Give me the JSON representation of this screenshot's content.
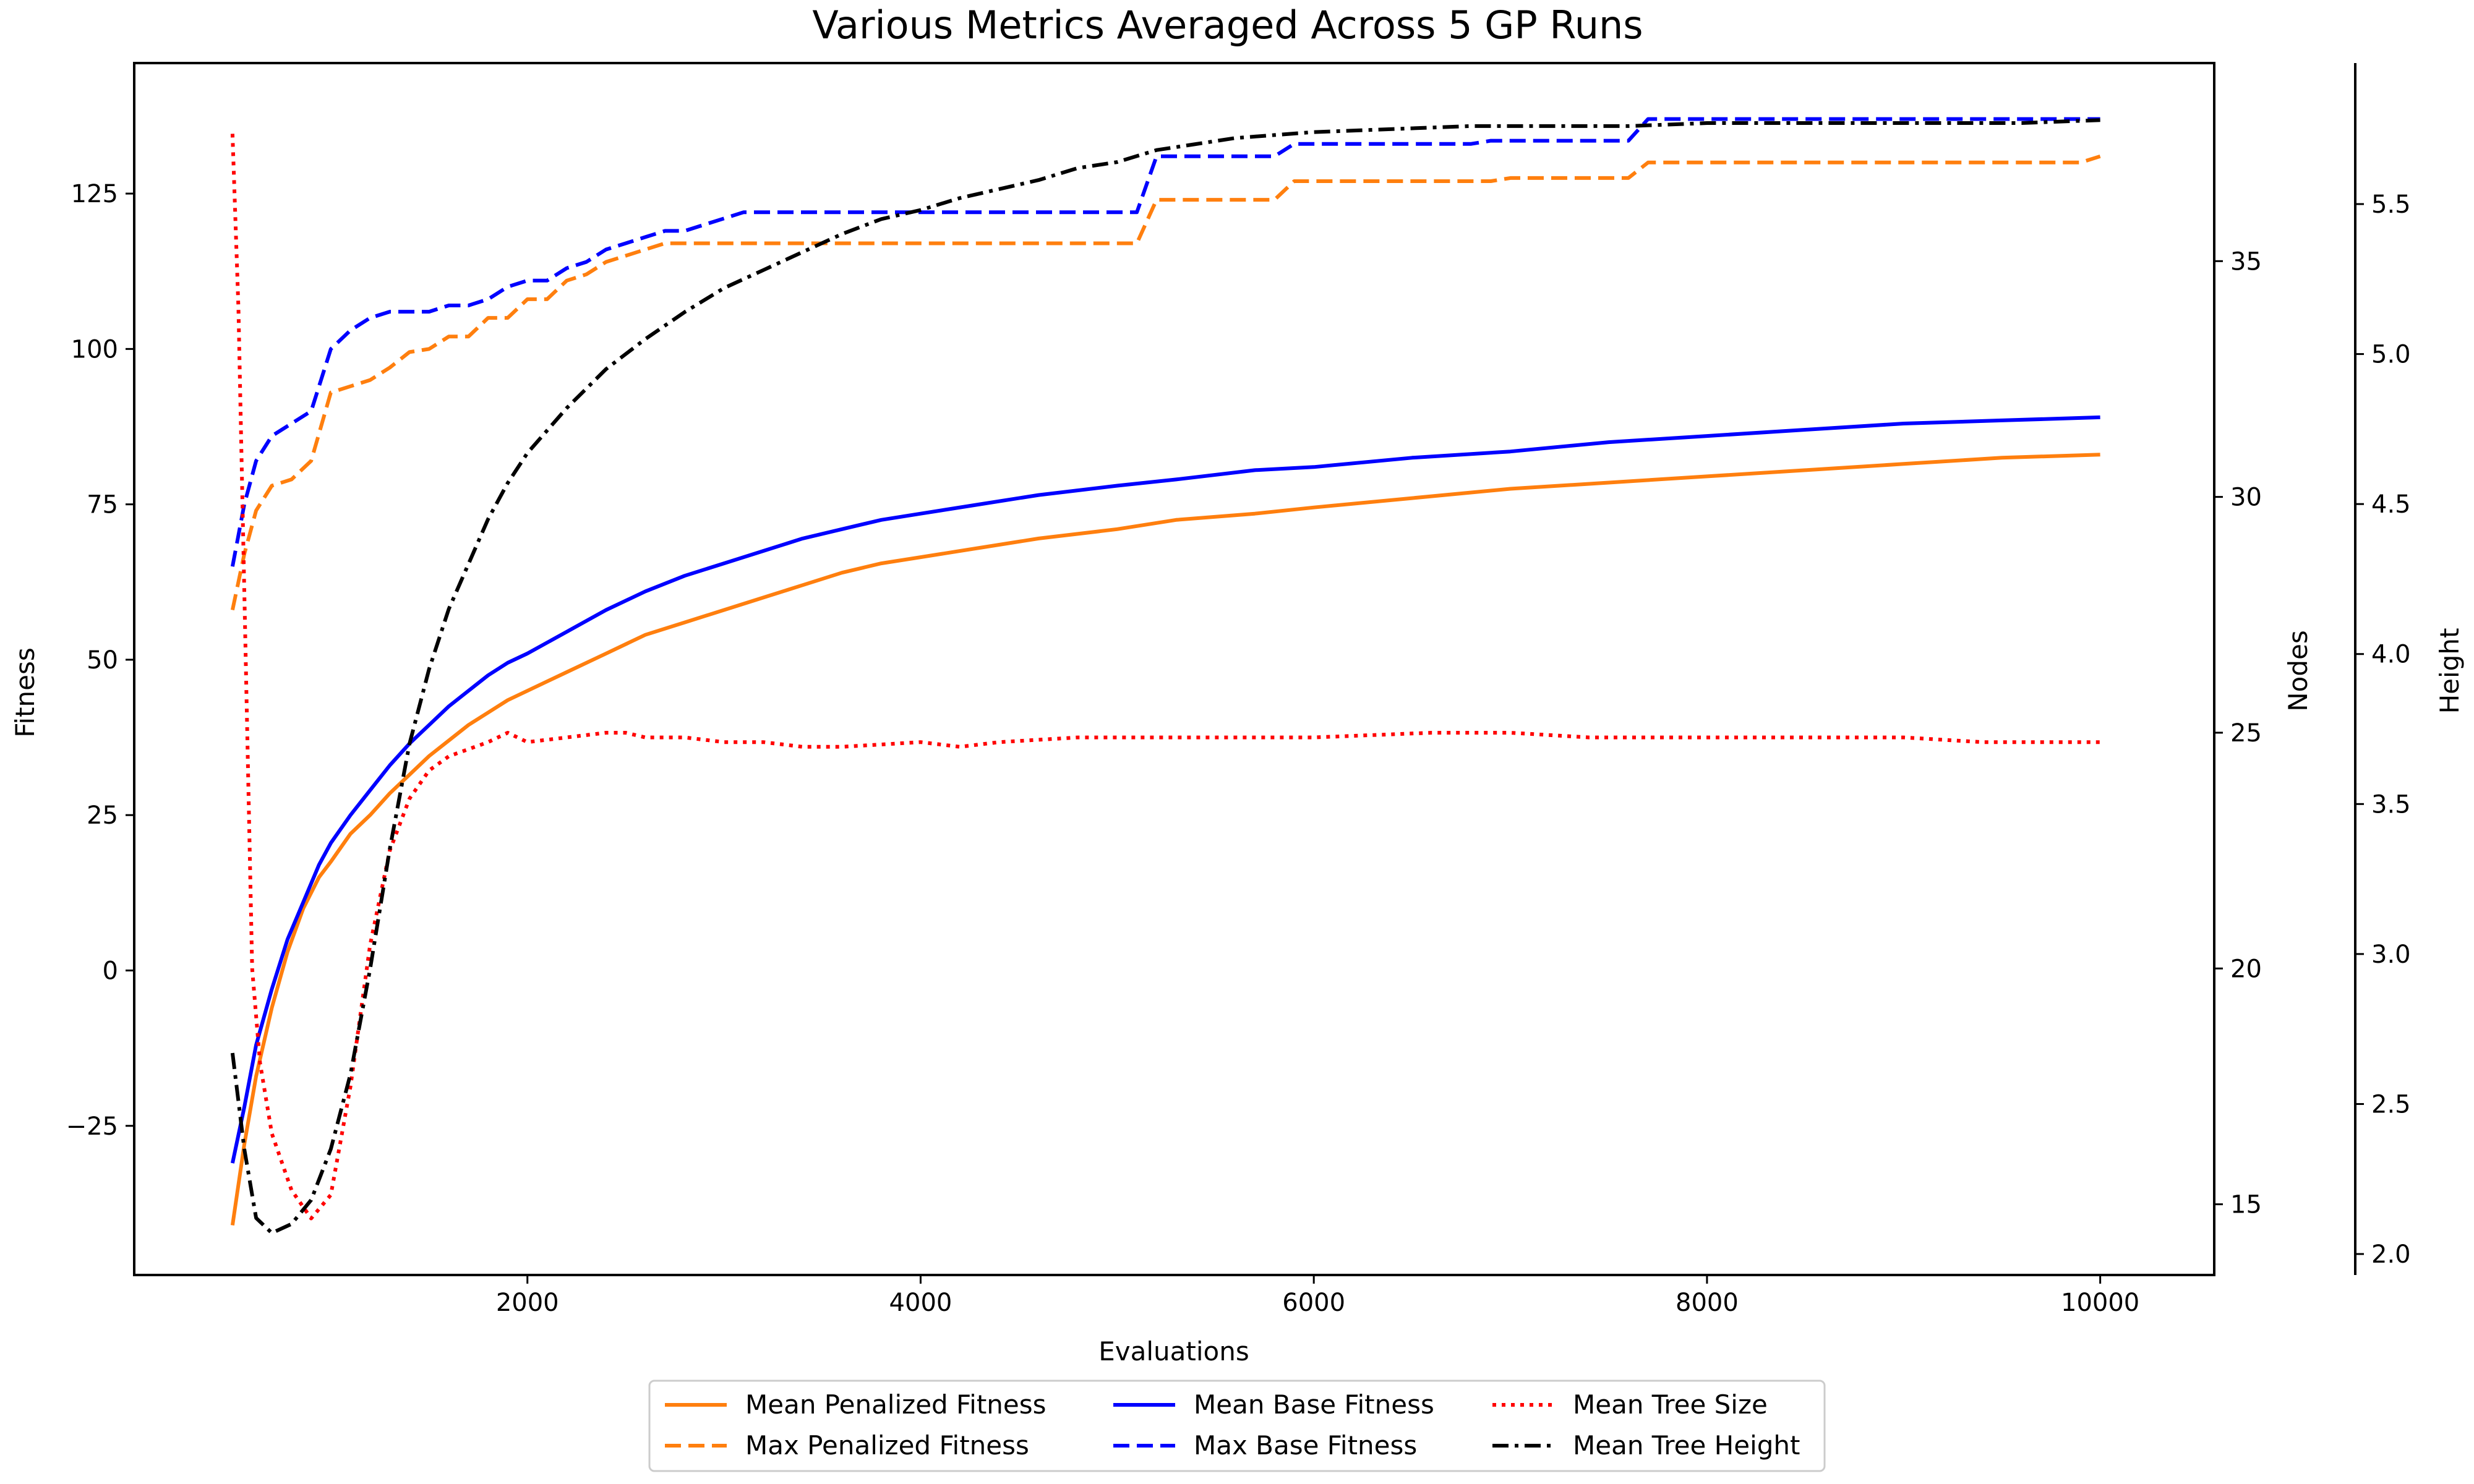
{
  "chart_data": {
    "type": "line",
    "title": "Various Metrics Averaged Across 5 GP Runs",
    "xlabel": "Evaluations",
    "ylabel": "Fitness",
    "ylabel_nodes": "Nodes",
    "ylabel_height": "Height",
    "xlim": [
      0,
      10580
    ],
    "xticks": [
      2000,
      4000,
      6000,
      8000,
      10000
    ],
    "ylim": [
      -49.0,
      146.0
    ],
    "yticks": [
      -25,
      0,
      25,
      50,
      75,
      100,
      125
    ],
    "ylim_nodes": [
      13.5,
      39.2
    ],
    "yticks_nodes": [
      15,
      20,
      25,
      30,
      35
    ],
    "ylim_height": [
      1.93,
      5.97
    ],
    "yticks_height": [
      "2.0",
      "2.5",
      "3.0",
      "3.5",
      "4.0",
      "4.5",
      "5.0",
      "5.5"
    ],
    "legend_placement": "bottom-center, below plot",
    "series": [
      {
        "name": "Mean Penalized Fitness",
        "axis": "fitness",
        "color": "#ff7f0e",
        "style": "solid",
        "points": [
          [
            500,
            -41
          ],
          [
            560,
            -28
          ],
          [
            620,
            -17
          ],
          [
            700,
            -6
          ],
          [
            780,
            3
          ],
          [
            860,
            10
          ],
          [
            940,
            15
          ],
          [
            1000,
            17.5
          ],
          [
            1100,
            22
          ],
          [
            1200,
            25
          ],
          [
            1300,
            28.5
          ],
          [
            1400,
            31.5
          ],
          [
            1500,
            34.5
          ],
          [
            1600,
            37
          ],
          [
            1700,
            39.5
          ],
          [
            1800,
            41.5
          ],
          [
            1900,
            43.5
          ],
          [
            2000,
            45
          ],
          [
            2200,
            48
          ],
          [
            2400,
            51
          ],
          [
            2600,
            54
          ],
          [
            2800,
            56
          ],
          [
            3000,
            58
          ],
          [
            3200,
            60
          ],
          [
            3400,
            62
          ],
          [
            3600,
            64
          ],
          [
            3800,
            65.5
          ],
          [
            4000,
            66.5
          ],
          [
            4300,
            68
          ],
          [
            4600,
            69.5
          ],
          [
            5000,
            71
          ],
          [
            5300,
            72.5
          ],
          [
            5700,
            73.5
          ],
          [
            6000,
            74.5
          ],
          [
            6500,
            76
          ],
          [
            7000,
            77.5
          ],
          [
            7500,
            78.5
          ],
          [
            8000,
            79.5
          ],
          [
            8500,
            80.5
          ],
          [
            9000,
            81.5
          ],
          [
            9500,
            82.5
          ],
          [
            10000,
            83
          ]
        ]
      },
      {
        "name": "Max Penalized Fitness",
        "axis": "fitness",
        "color": "#ff7f0e",
        "style": "dashed",
        "points": [
          [
            500,
            58
          ],
          [
            560,
            67
          ],
          [
            620,
            74
          ],
          [
            700,
            78
          ],
          [
            800,
            79
          ],
          [
            900,
            82
          ],
          [
            1000,
            93
          ],
          [
            1100,
            94
          ],
          [
            1200,
            95
          ],
          [
            1300,
            97
          ],
          [
            1400,
            99.5
          ],
          [
            1500,
            100
          ],
          [
            1600,
            102
          ],
          [
            1700,
            102
          ],
          [
            1800,
            105
          ],
          [
            1900,
            105
          ],
          [
            2000,
            108
          ],
          [
            2100,
            108
          ],
          [
            2200,
            111
          ],
          [
            2300,
            112
          ],
          [
            2400,
            114
          ],
          [
            2500,
            115
          ],
          [
            2600,
            116
          ],
          [
            2700,
            117
          ],
          [
            2800,
            117
          ],
          [
            2900,
            117
          ],
          [
            3000,
            117
          ],
          [
            3100,
            117
          ],
          [
            3200,
            117
          ],
          [
            5100,
            117
          ],
          [
            5200,
            124
          ],
          [
            5800,
            124
          ],
          [
            5900,
            127
          ],
          [
            6900,
            127
          ],
          [
            7000,
            127.5
          ],
          [
            7600,
            127.5
          ],
          [
            7700,
            130
          ],
          [
            9900,
            130
          ],
          [
            10000,
            131
          ]
        ]
      },
      {
        "name": "Mean Base Fitness",
        "axis": "fitness",
        "color": "#0000ff",
        "style": "solid",
        "points": [
          [
            500,
            -31
          ],
          [
            560,
            -22
          ],
          [
            620,
            -12
          ],
          [
            700,
            -3
          ],
          [
            780,
            5
          ],
          [
            860,
            11
          ],
          [
            940,
            17
          ],
          [
            1000,
            20.5
          ],
          [
            1100,
            25
          ],
          [
            1200,
            29
          ],
          [
            1300,
            33
          ],
          [
            1400,
            36.5
          ],
          [
            1500,
            39.5
          ],
          [
            1600,
            42.5
          ],
          [
            1700,
            45
          ],
          [
            1800,
            47.5
          ],
          [
            1900,
            49.5
          ],
          [
            2000,
            51
          ],
          [
            2200,
            54.5
          ],
          [
            2400,
            58
          ],
          [
            2600,
            61
          ],
          [
            2800,
            63.5
          ],
          [
            3000,
            65.5
          ],
          [
            3200,
            67.5
          ],
          [
            3400,
            69.5
          ],
          [
            3600,
            71
          ],
          [
            3800,
            72.5
          ],
          [
            4000,
            73.5
          ],
          [
            4300,
            75
          ],
          [
            4600,
            76.5
          ],
          [
            5000,
            78
          ],
          [
            5300,
            79
          ],
          [
            5700,
            80.5
          ],
          [
            6000,
            81
          ],
          [
            6500,
            82.5
          ],
          [
            7000,
            83.5
          ],
          [
            7500,
            85
          ],
          [
            8000,
            86
          ],
          [
            8500,
            87
          ],
          [
            9000,
            88
          ],
          [
            9500,
            88.5
          ],
          [
            10000,
            89
          ]
        ]
      },
      {
        "name": "Max Base Fitness",
        "axis": "fitness",
        "color": "#0000ff",
        "style": "dashed",
        "points": [
          [
            500,
            65
          ],
          [
            560,
            75
          ],
          [
            620,
            82
          ],
          [
            700,
            86
          ],
          [
            800,
            88
          ],
          [
            900,
            90
          ],
          [
            1000,
            100
          ],
          [
            1100,
            103
          ],
          [
            1200,
            105
          ],
          [
            1300,
            106
          ],
          [
            1400,
            106
          ],
          [
            1500,
            106
          ],
          [
            1600,
            107
          ],
          [
            1700,
            107
          ],
          [
            1800,
            108
          ],
          [
            1900,
            110
          ],
          [
            2000,
            111
          ],
          [
            2100,
            111
          ],
          [
            2200,
            113
          ],
          [
            2300,
            114
          ],
          [
            2400,
            116
          ],
          [
            2500,
            117
          ],
          [
            2600,
            118
          ],
          [
            2700,
            119
          ],
          [
            2800,
            119
          ],
          [
            2900,
            120
          ],
          [
            3000,
            121
          ],
          [
            3100,
            122
          ],
          [
            3600,
            122
          ],
          [
            3700,
            122
          ],
          [
            5100,
            122
          ],
          [
            5200,
            131
          ],
          [
            5800,
            131
          ],
          [
            5900,
            133
          ],
          [
            6800,
            133
          ],
          [
            6900,
            133.5
          ],
          [
            7600,
            133.5
          ],
          [
            7700,
            137
          ],
          [
            10000,
            137
          ]
        ]
      },
      {
        "name": "Mean Tree Size",
        "axis": "nodes",
        "color": "#ff0000",
        "style": "dotted",
        "points": [
          [
            500,
            37.7
          ],
          [
            530,
            34
          ],
          [
            560,
            28
          ],
          [
            600,
            20
          ],
          [
            640,
            18
          ],
          [
            700,
            16.5
          ],
          [
            800,
            15.3
          ],
          [
            900,
            14.7
          ],
          [
            1000,
            15.2
          ],
          [
            1100,
            17.5
          ],
          [
            1200,
            20.5
          ],
          [
            1300,
            22.5
          ],
          [
            1400,
            23.6
          ],
          [
            1500,
            24.2
          ],
          [
            1600,
            24.5
          ],
          [
            1800,
            24.8
          ],
          [
            1900,
            25
          ],
          [
            2000,
            24.8
          ],
          [
            2200,
            24.9
          ],
          [
            2400,
            25
          ],
          [
            2500,
            25
          ],
          [
            2600,
            24.9
          ],
          [
            2800,
            24.9
          ],
          [
            3000,
            24.8
          ],
          [
            3200,
            24.8
          ],
          [
            3400,
            24.7
          ],
          [
            3600,
            24.7
          ],
          [
            4000,
            24.8
          ],
          [
            4200,
            24.7
          ],
          [
            4400,
            24.8
          ],
          [
            4800,
            24.9
          ],
          [
            5200,
            24.9
          ],
          [
            5600,
            24.9
          ],
          [
            6000,
            24.9
          ],
          [
            6600,
            25
          ],
          [
            7000,
            25
          ],
          [
            7400,
            24.9
          ],
          [
            7800,
            24.9
          ],
          [
            8200,
            24.9
          ],
          [
            8600,
            24.9
          ],
          [
            9000,
            24.9
          ],
          [
            9400,
            24.8
          ],
          [
            9800,
            24.8
          ],
          [
            10000,
            24.8
          ]
        ]
      },
      {
        "name": "Mean Tree Height",
        "axis": "height",
        "color": "#000000",
        "style": "dashdot",
        "points": [
          [
            500,
            2.67
          ],
          [
            560,
            2.35
          ],
          [
            620,
            2.12
          ],
          [
            700,
            2.07
          ],
          [
            800,
            2.1
          ],
          [
            900,
            2.18
          ],
          [
            1000,
            2.35
          ],
          [
            1100,
            2.6
          ],
          [
            1200,
            2.95
          ],
          [
            1300,
            3.35
          ],
          [
            1400,
            3.7
          ],
          [
            1500,
            3.95
          ],
          [
            1600,
            4.15
          ],
          [
            1700,
            4.3
          ],
          [
            1800,
            4.45
          ],
          [
            1900,
            4.57
          ],
          [
            2000,
            4.67
          ],
          [
            2200,
            4.82
          ],
          [
            2400,
            4.95
          ],
          [
            2600,
            5.05
          ],
          [
            2800,
            5.14
          ],
          [
            3000,
            5.22
          ],
          [
            3200,
            5.28
          ],
          [
            3400,
            5.34
          ],
          [
            3600,
            5.4
          ],
          [
            3800,
            5.45
          ],
          [
            4000,
            5.48
          ],
          [
            4200,
            5.52
          ],
          [
            4400,
            5.55
          ],
          [
            4600,
            5.58
          ],
          [
            4800,
            5.62
          ],
          [
            5000,
            5.64
          ],
          [
            5200,
            5.68
          ],
          [
            5400,
            5.7
          ],
          [
            5600,
            5.72
          ],
          [
            5800,
            5.73
          ],
          [
            6000,
            5.74
          ],
          [
            6400,
            5.75
          ],
          [
            6800,
            5.76
          ],
          [
            7200,
            5.76
          ],
          [
            7600,
            5.76
          ],
          [
            8000,
            5.77
          ],
          [
            8400,
            5.77
          ],
          [
            8800,
            5.77
          ],
          [
            9200,
            5.77
          ],
          [
            9600,
            5.77
          ],
          [
            10000,
            5.78
          ]
        ]
      }
    ]
  }
}
